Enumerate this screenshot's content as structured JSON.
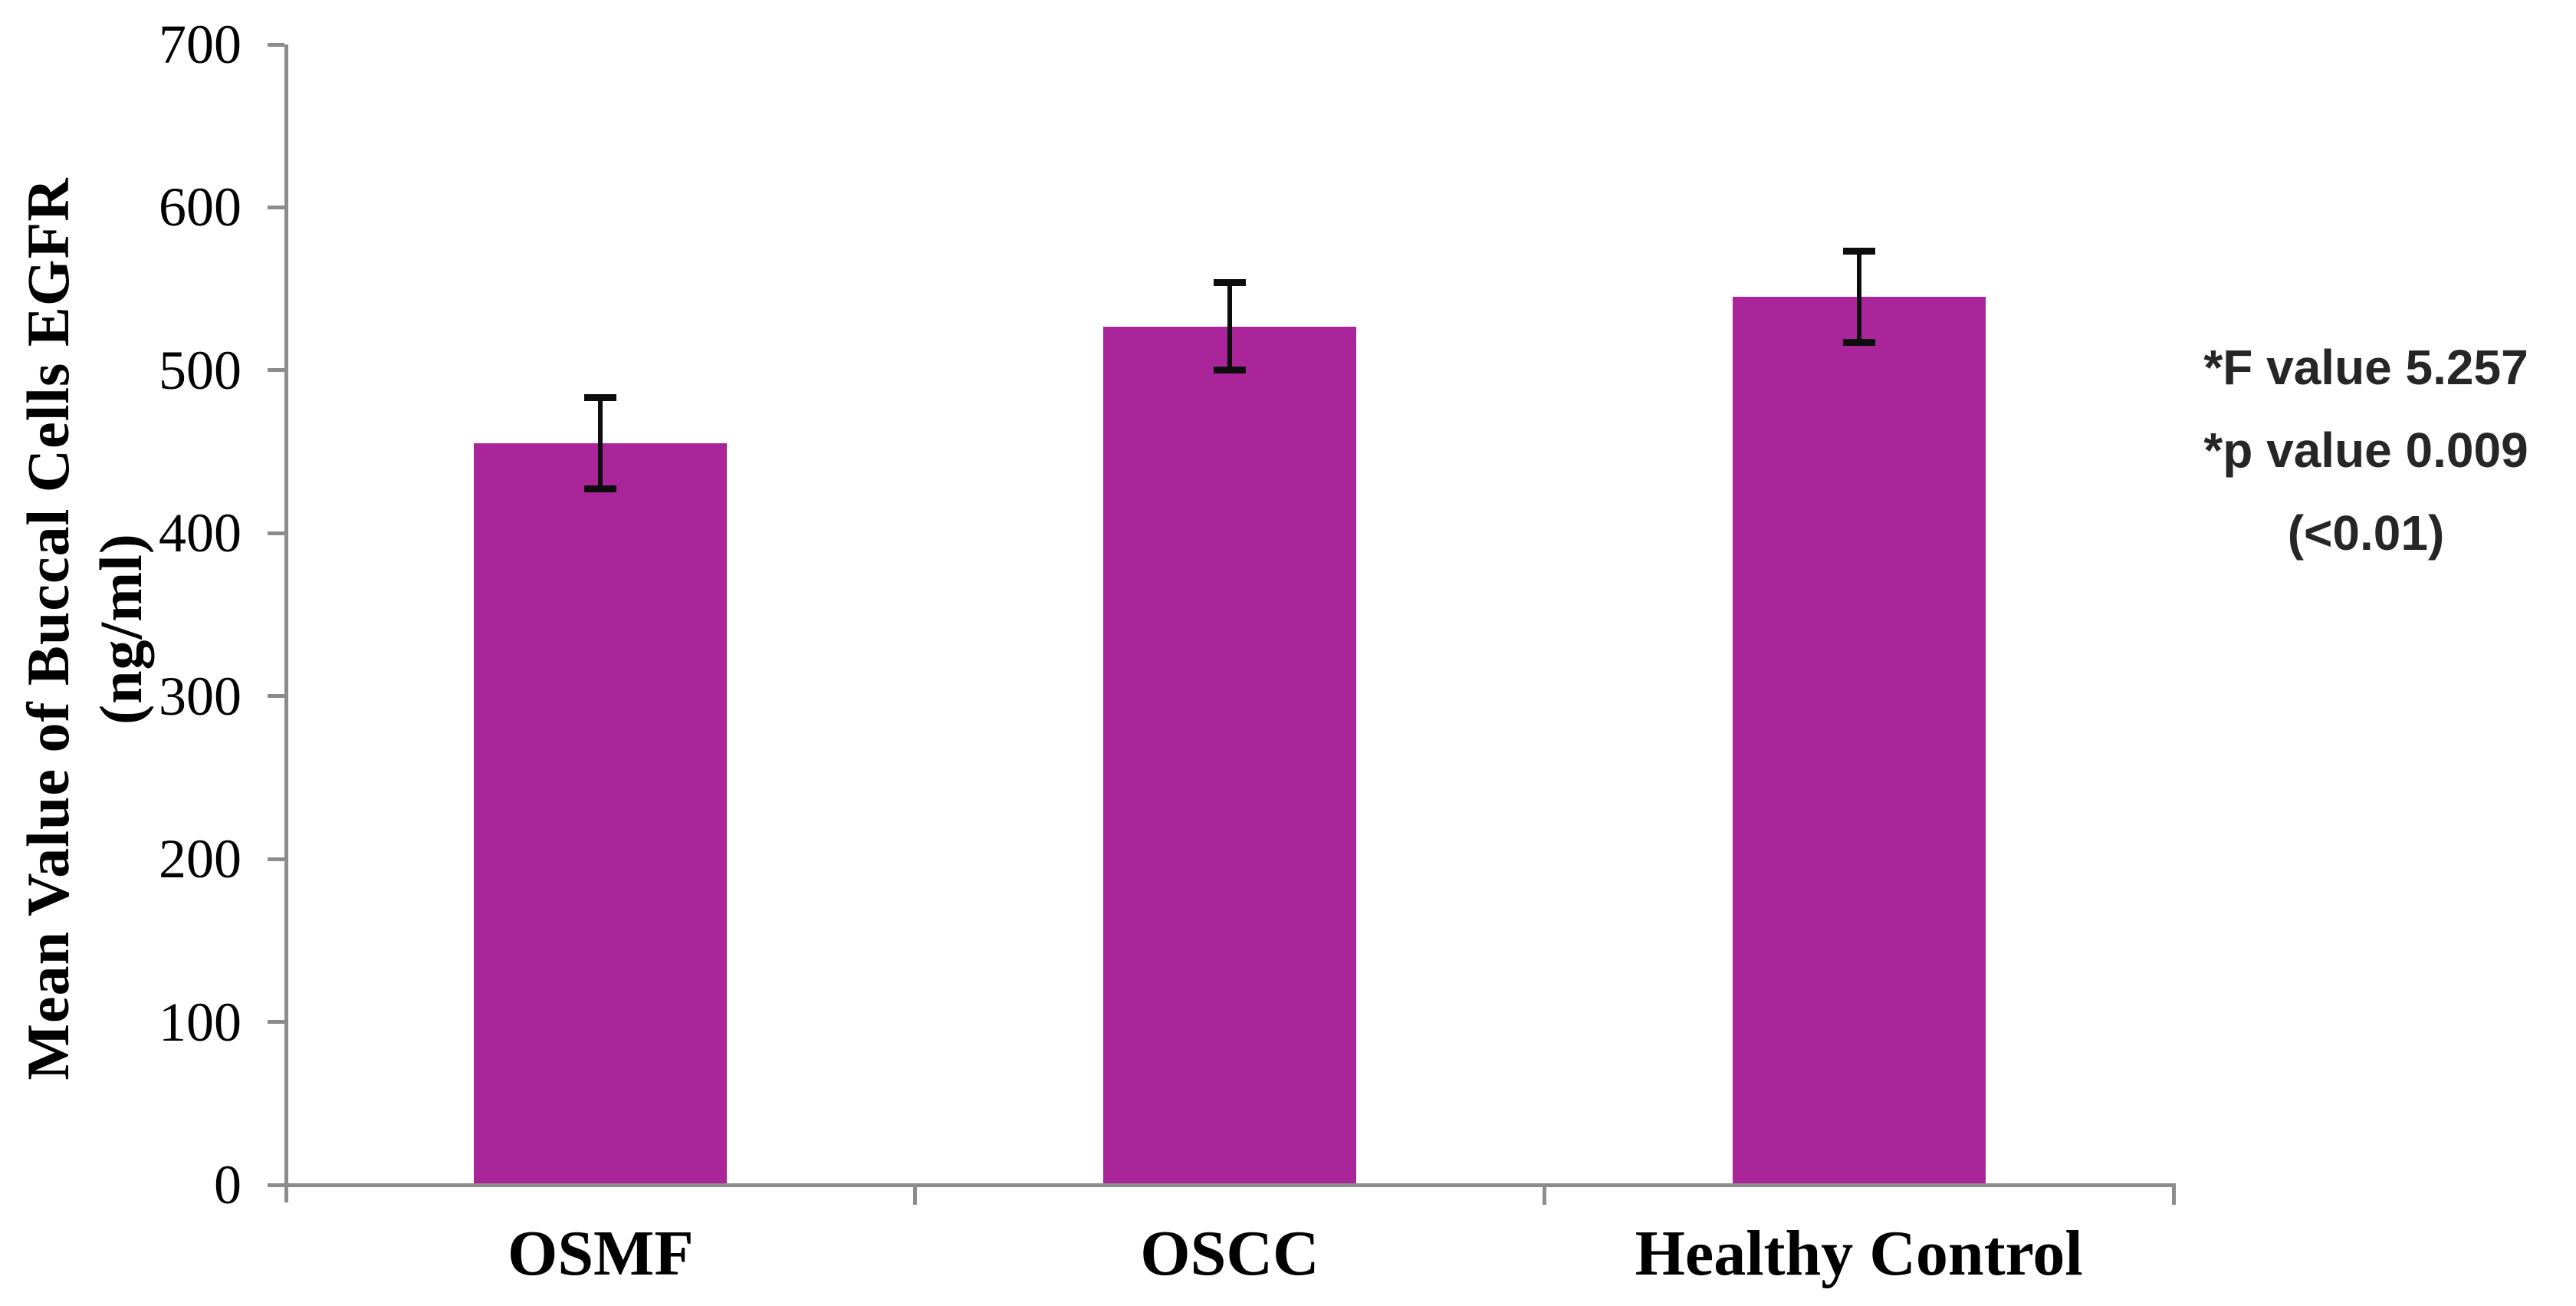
{
  "chart_data": {
    "type": "bar",
    "categories": [
      "OSMF",
      "OSCC",
      "Healthy Control"
    ],
    "values": [
      455,
      527,
      545
    ],
    "error_bars": [
      28,
      27,
      28
    ],
    "title": "",
    "xlabel": "",
    "ylabel_line1": "Mean Value of Buccal Cells EGFR",
    "ylabel_line2": "(ng/ml)",
    "ylabel_full": "Mean Value of Buccal Cells EGFR (ng/ml)",
    "yticks": [
      0,
      100,
      200,
      300,
      400,
      500,
      600,
      700
    ],
    "ylim": [
      0,
      700
    ],
    "grid": false,
    "legend_position": "none",
    "bar_color": "#A92599",
    "axis_color": "#8C8C8C",
    "error_bar_color": "#0D0D0D",
    "text_color": "#000000",
    "annotation": {
      "color": "#262626",
      "lines": [
        "*F value 5.257",
        "*p value 0.009",
        "(<0.01)"
      ]
    }
  }
}
